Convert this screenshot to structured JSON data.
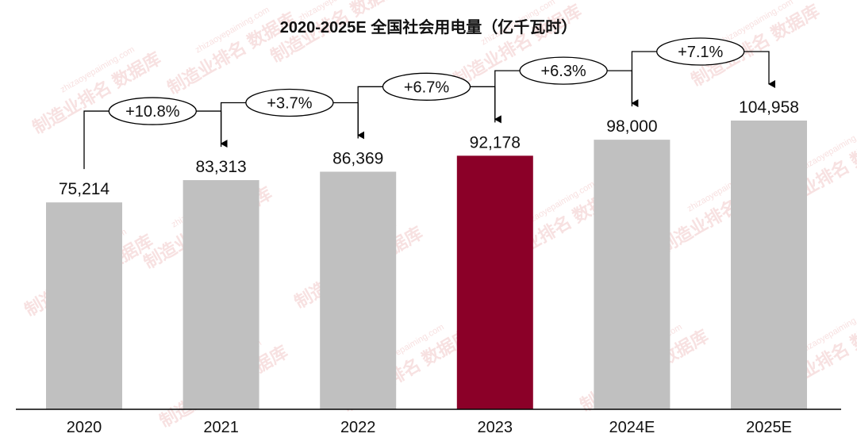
{
  "chart_data": {
    "type": "bar",
    "title": "2020-2025E 全国社会用电量（亿千瓦时）",
    "categories": [
      "2020",
      "2021",
      "2022",
      "2023",
      "2024E",
      "2025E"
    ],
    "values": [
      75214,
      83313,
      86369,
      92178,
      98000,
      104958
    ],
    "value_labels": [
      "75,214",
      "83,313",
      "86,369",
      "92,178",
      "98,000",
      "104,958"
    ],
    "growth_labels": [
      "+10.8%",
      "+3.7%",
      "+6.7%",
      "+6.3%",
      "+7.1%"
    ],
    "highlight_index": 3,
    "ylim": [
      0,
      104958
    ],
    "grid": false,
    "xlabel": "",
    "ylabel": ""
  },
  "colors": {
    "bar": "#c0c0c0",
    "highlight": "#8b0028",
    "text": "#111111",
    "axis": "#000000"
  },
  "watermark": {
    "text": "制造业排名 数据库",
    "url": "zhizaoyepaiming.com"
  }
}
